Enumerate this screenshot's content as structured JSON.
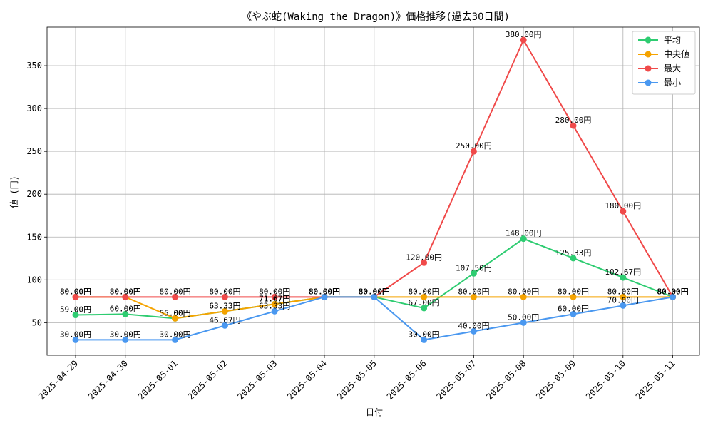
{
  "chart_data": {
    "type": "line",
    "title": "《やぶ蛇(Waking the Dragon)》価格推移(過去30日間)",
    "xlabel": "日付",
    "ylabel": "値 (円)",
    "ylim": [
      12,
      395
    ],
    "yticks": [
      50,
      100,
      150,
      200,
      250,
      300,
      350
    ],
    "categories": [
      "2025-04-29",
      "2025-04-30",
      "2025-05-01",
      "2025-05-02",
      "2025-05-03",
      "2025-05-04",
      "2025-05-05",
      "2025-05-06",
      "2025-05-07",
      "2025-05-08",
      "2025-05-09",
      "2025-05-10",
      "2025-05-11"
    ],
    "grid": true,
    "legend_position": "top-right",
    "series": [
      {
        "name": "平均",
        "color": "#2ecc71",
        "values": [
          59.0,
          60.0,
          55.0,
          63.33,
          71.67,
          80.0,
          80.0,
          67.0,
          107.5,
          148.0,
          125.33,
          102.67,
          80.0
        ],
        "labels": [
          "59.00円",
          "60.00円",
          "55.00円",
          "63.33円",
          "71.67円",
          "80.00円",
          "80.00円",
          "67.00円",
          "107.50円",
          "148.00円",
          "125.33円",
          "102.67円",
          "80.00円"
        ]
      },
      {
        "name": "中央値",
        "color": "#f5a300",
        "values": [
          80.0,
          80.0,
          55.0,
          63.33,
          71.67,
          80.0,
          80.0,
          80.0,
          80.0,
          80.0,
          80.0,
          80.0,
          80.0
        ],
        "labels": [
          "80.00円",
          "80.00円",
          "55.00円",
          "63.33円",
          "71.67円",
          "80.00円",
          "80.00円",
          "80.00円",
          "80.00円",
          "80.00円",
          "80.00円",
          "80.00円",
          "80.00円"
        ]
      },
      {
        "name": "最大",
        "color": "#f04a4a",
        "values": [
          80.0,
          80.0,
          80.0,
          80.0,
          80.0,
          80.0,
          80.0,
          120.0,
          250.0,
          380.0,
          280.0,
          180.0,
          80.0
        ],
        "labels": [
          "80.00円",
          "80.00円",
          "80.00円",
          "80.00円",
          "80.00円",
          "80.00円",
          "80.00円",
          "120.00円",
          "250.00円",
          "380.00円",
          "280.00円",
          "180.00円",
          "80.00円"
        ]
      },
      {
        "name": "最小",
        "color": "#4a98f0",
        "values": [
          30.0,
          30.0,
          30.0,
          46.67,
          63.33,
          80.0,
          80.0,
          30.0,
          40.0,
          50.0,
          60.0,
          70.0,
          80.0
        ],
        "labels": [
          "30.00円",
          "30.00円",
          "30.00円",
          "46.67円",
          "63.33円",
          "80.00円",
          "80.00円",
          "30.00円",
          "40.00円",
          "50.00円",
          "60.00円",
          "70.00円",
          "80.00円"
        ]
      }
    ]
  }
}
